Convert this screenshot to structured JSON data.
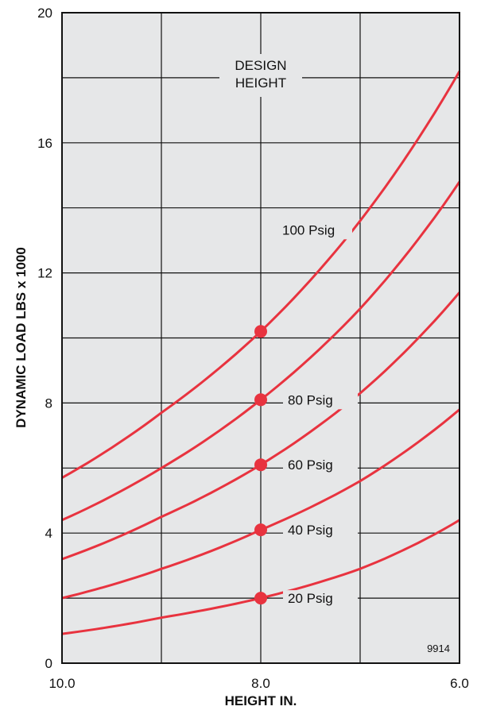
{
  "chart_data": {
    "type": "line",
    "xlabel": "HEIGHT IN.",
    "ylabel": "DYNAMIC LOAD LBS x 1000",
    "xlim": [
      10.0,
      6.0
    ],
    "ylim": [
      0,
      20
    ],
    "x_ticks": [
      {
        "value": 10.0,
        "label": "10.0"
      },
      {
        "value": 8.0,
        "label": "8.0"
      },
      {
        "value": 6.0,
        "label": "6.0"
      }
    ],
    "y_ticks": [
      {
        "value": 0,
        "label": "0"
      },
      {
        "value": 4,
        "label": "4"
      },
      {
        "value": 8,
        "label": "8"
      },
      {
        "value": 12,
        "label": "12"
      },
      {
        "value": 16,
        "label": "16"
      },
      {
        "value": 20,
        "label": "20"
      }
    ],
    "grid": true,
    "series_color": "#e8333f",
    "design_height": {
      "x": 8.0,
      "label_lines": [
        "DESIGN",
        "HEIGHT"
      ]
    },
    "series": [
      {
        "name": "100 Psig",
        "x": [
          10.0,
          9.0,
          8.0,
          7.0,
          6.0
        ],
        "y": [
          5.7,
          7.7,
          10.2,
          13.6,
          18.2
        ]
      },
      {
        "name": "80 Psig",
        "x": [
          10.0,
          9.0,
          8.0,
          7.0,
          6.0
        ],
        "y": [
          4.4,
          6.0,
          8.1,
          10.9,
          14.8
        ]
      },
      {
        "name": "60 Psig",
        "x": [
          10.0,
          9.0,
          8.0,
          7.0,
          6.0
        ],
        "y": [
          3.2,
          4.5,
          6.1,
          8.3,
          11.4
        ]
      },
      {
        "name": "40 Psig",
        "x": [
          10.0,
          9.0,
          8.0,
          7.0,
          6.0
        ],
        "y": [
          2.0,
          2.9,
          4.1,
          5.6,
          7.8
        ]
      },
      {
        "name": "20 Psig",
        "x": [
          10.0,
          9.0,
          8.0,
          7.0,
          6.0
        ],
        "y": [
          0.9,
          1.4,
          2.0,
          2.9,
          4.4
        ]
      }
    ],
    "design_points": [
      10.2,
      8.1,
      6.1,
      4.1,
      2.0
    ],
    "figure_id": "9914"
  }
}
